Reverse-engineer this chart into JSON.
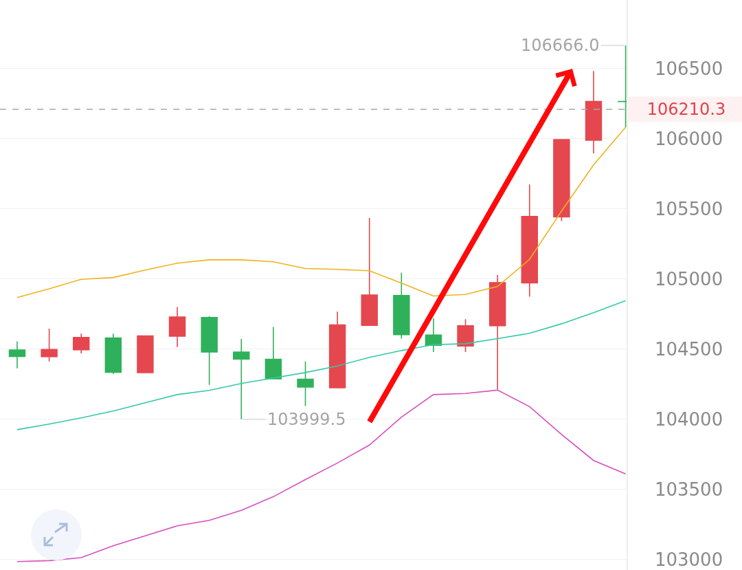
{
  "chart_data": {
    "type": "candlestick",
    "categories": [
      null,
      null,
      null,
      null,
      null,
      null,
      null,
      null,
      null,
      null,
      null,
      null,
      null,
      null,
      null,
      null,
      null,
      null,
      null,
      null
    ],
    "ohlc": [
      [
        104494,
        104555,
        104363,
        104448
      ],
      [
        104446,
        104646,
        104412,
        104498
      ],
      [
        104495,
        104611,
        104469,
        104583
      ],
      [
        104580,
        104611,
        104324,
        104335
      ],
      [
        104332,
        104595,
        104332,
        104595
      ],
      [
        104592,
        104800,
        104515,
        104729
      ],
      [
        104725,
        104735,
        104245,
        104480
      ],
      [
        104479,
        104572,
        103999.5,
        104430
      ],
      [
        104428,
        104658,
        104285,
        104289
      ],
      [
        104286,
        104412,
        104095,
        104229
      ],
      [
        104225,
        104768,
        104221,
        104673
      ],
      [
        104670,
        105435,
        104670,
        104886
      ],
      [
        104882,
        105046,
        104575,
        104604
      ],
      [
        104601,
        104721,
        104479,
        104528
      ],
      [
        104523,
        104714,
        104479,
        104667
      ],
      [
        104667,
        105029,
        104212,
        104974
      ],
      [
        104972,
        105675,
        104874,
        105446
      ],
      [
        105443,
        105994,
        105413,
        105994
      ],
      [
        105990,
        106484,
        105896,
        106266
      ],
      [
        106266,
        106666.0,
        106083,
        106266
      ]
    ],
    "colors": [
      "#2eb15a",
      "#e5474f",
      "#e5474f",
      "#2eb15a",
      "#e5474f",
      "#e5474f",
      "#2eb15a",
      "#2eb15a",
      "#2eb15a",
      "#2eb15a",
      "#e5474f",
      "#e5474f",
      "#2eb15a",
      "#2eb15a",
      "#e5474f",
      "#e5474f",
      "#e5474f",
      "#e5474f",
      "#e5474f",
      "#2eb15a"
    ],
    "series": [
      {
        "type": "line",
        "color": "#f0b21e",
        "values": [
          104868,
          104931,
          104998,
          105011,
          105064,
          105113,
          105137,
          105137,
          105123,
          105075,
          105069,
          105059,
          104971,
          104879,
          104890,
          104947,
          105140,
          105485,
          105814,
          106083
        ]
      },
      {
        "type": "line",
        "color": "#33c9a6",
        "values": [
          103926,
          103966,
          104010,
          104059,
          104118,
          104176,
          104206,
          104255,
          104294,
          104333,
          104380,
          104441,
          104490,
          104532,
          104539,
          104575,
          104613,
          104681,
          104760,
          104846
        ]
      },
      {
        "type": "line",
        "color": "#d64fbf",
        "values": [
          102985,
          102992,
          103013,
          103098,
          103169,
          103240,
          103279,
          103350,
          103448,
          103570,
          103688,
          103816,
          104015,
          104176,
          104184,
          104208,
          104090,
          103892,
          103706,
          103610
        ]
      }
    ],
    "ylim": [
      102925,
      106990
    ],
    "yticks": [
      103000,
      103500,
      104000,
      104500,
      105000,
      105500,
      106000,
      106500
    ],
    "ref_lines": [
      {
        "axis": "y",
        "value": 106210.3,
        "label": "106210.3",
        "color": "#a8a8a8",
        "line_style": "dashed"
      }
    ],
    "annotations": [
      "106666.0",
      "103999.5"
    ],
    "grid": "y",
    "tick_labels": "y",
    "line_style": "solid"
  }
}
